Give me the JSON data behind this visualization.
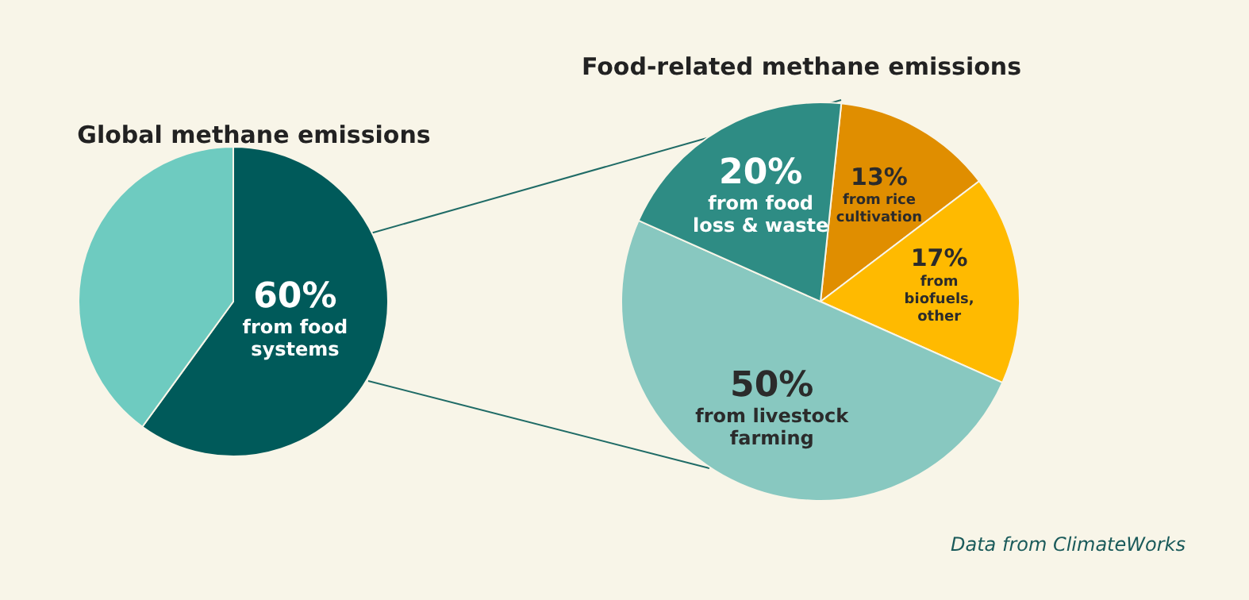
{
  "chart_data": [
    {
      "type": "pie",
      "title": "Global methane emissions",
      "categories": [
        "from food systems",
        null
      ],
      "values": [
        60,
        40
      ],
      "colors": [
        "#005a5a",
        "#6ecbc0"
      ],
      "value_labels": [
        "60%",
        null
      ],
      "legend": false
    },
    {
      "type": "pie",
      "title": "Food-related methane emissions",
      "categories": [
        "from rice cultivation",
        "from biofuels, other",
        "from livestock farming",
        "from food loss & waste"
      ],
      "values": [
        13,
        17,
        50,
        20
      ],
      "colors": [
        "#e08e00",
        "#ffba00",
        "#88c8c0",
        "#2e8c84"
      ],
      "value_labels": [
        "13%",
        "17%",
        "50%",
        "20%"
      ],
      "legend": false,
      "annotations": [
        "Data from ClimateWorks"
      ]
    }
  ]
}
